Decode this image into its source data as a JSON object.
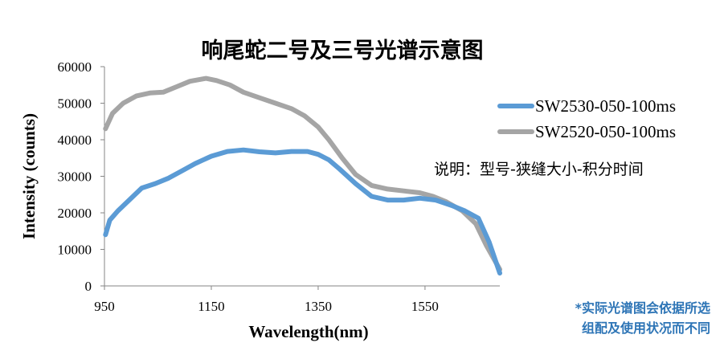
{
  "chart_data": {
    "type": "line",
    "title": "响尾蛇二号及三号光谱示意图",
    "xlabel": "Wavelength(nm)",
    "ylabel": "Intensity (counts)",
    "xlim": [
      950,
      1690
    ],
    "ylim": [
      0,
      60000
    ],
    "x_ticks": [
      950,
      1150,
      1350,
      1550
    ],
    "y_ticks": [
      0,
      10000,
      20000,
      30000,
      40000,
      50000,
      60000
    ],
    "grid": false,
    "legend_position": "right",
    "note": "说明：型号-狭缝大小-积分时间",
    "footnote": [
      "*实际光谱图会依据所选",
      "组配及使用状况而不同"
    ],
    "series": [
      {
        "name": "SW2520-050-100ms",
        "color": "#a5a5a5",
        "x": [
          952,
          965,
          985,
          1010,
          1035,
          1060,
          1085,
          1110,
          1140,
          1160,
          1185,
          1210,
          1240,
          1270,
          1300,
          1325,
          1350,
          1370,
          1395,
          1420,
          1450,
          1480,
          1510,
          1540,
          1565,
          1590,
          1620,
          1645,
          1665,
          1690
        ],
        "y": [
          43000,
          47200,
          50000,
          52000,
          52800,
          53000,
          54500,
          56000,
          56800,
          56200,
          55000,
          53000,
          51500,
          50000,
          48500,
          46500,
          43500,
          40000,
          35000,
          30500,
          27500,
          26500,
          26000,
          25500,
          24500,
          23000,
          20500,
          17000,
          11000,
          4500
        ]
      },
      {
        "name": "SW2530-050-100ms",
        "color": "#5b9bd5",
        "x": [
          952,
          960,
          975,
          1000,
          1020,
          1045,
          1070,
          1095,
          1120,
          1150,
          1180,
          1210,
          1240,
          1270,
          1300,
          1330,
          1350,
          1370,
          1390,
          1420,
          1450,
          1480,
          1510,
          1540,
          1570,
          1600,
          1625,
          1650,
          1670,
          1690
        ],
        "y": [
          14000,
          18000,
          20500,
          24000,
          26800,
          28000,
          29500,
          31500,
          33500,
          35500,
          36800,
          37200,
          36700,
          36400,
          36800,
          36800,
          36000,
          34500,
          32000,
          28000,
          24500,
          23500,
          23500,
          24000,
          23500,
          22000,
          20500,
          18500,
          12000,
          3500
        ]
      }
    ]
  }
}
